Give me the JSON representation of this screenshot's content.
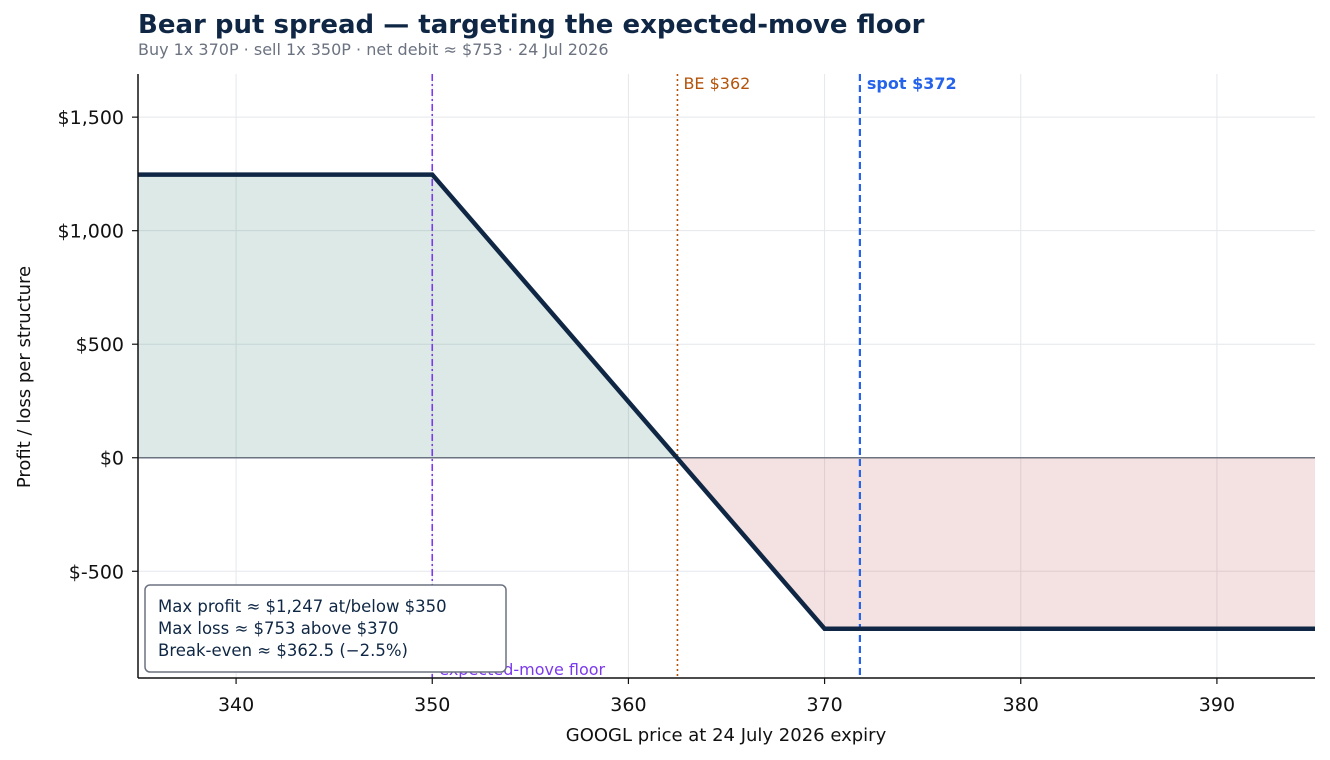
{
  "chart_data": {
    "type": "line",
    "title": "Bear put spread — targeting the expected-move floor",
    "subtitle": "Buy 1x 370P · sell 1x 350P · net debit ≈ $753 · 24 Jul 2026",
    "xlabel": "GOOGL price at 24 July 2026 expiry",
    "ylabel": "Profit / loss per structure",
    "xlim": [
      335,
      395
    ],
    "ylim": [
      -970,
      1690
    ],
    "x_ticks": [
      340,
      350,
      360,
      370,
      380,
      390
    ],
    "y_ticks": [
      {
        "value": 1500,
        "label": "$1,500"
      },
      {
        "value": 1000,
        "label": "$1,000"
      },
      {
        "value": 500,
        "label": "$500"
      },
      {
        "value": 0,
        "label": "$0"
      },
      {
        "value": -500,
        "label": "$-500"
      }
    ],
    "grid": true,
    "series": [
      {
        "x": [
          335,
          350,
          370,
          395
        ],
        "y": [
          1247,
          1247,
          -753,
          -753
        ],
        "color": "#0f2744"
      }
    ],
    "reference_lines": [
      {
        "x": 350,
        "label": "expected-move floor",
        "color": "#7c3aed",
        "style": "dashdot"
      },
      {
        "x": 362.5,
        "label": "BE $362",
        "color": "#b45309",
        "style": "dotted"
      },
      {
        "x": 371.8,
        "label": "spot $372",
        "color": "#2563eb",
        "style": "dashed"
      }
    ],
    "annotation_box": [
      "Max profit ≈ $1,247 at/below $350",
      "Max loss ≈ $753 above $370",
      "Break-even ≈ $362.5 (−2.5%)"
    ],
    "colors": {
      "profit_fill": "#2f7d6b",
      "loss_fill": "#c0504d",
      "payoff_line": "#0f2744",
      "zero_line": "#6b7280"
    }
  }
}
